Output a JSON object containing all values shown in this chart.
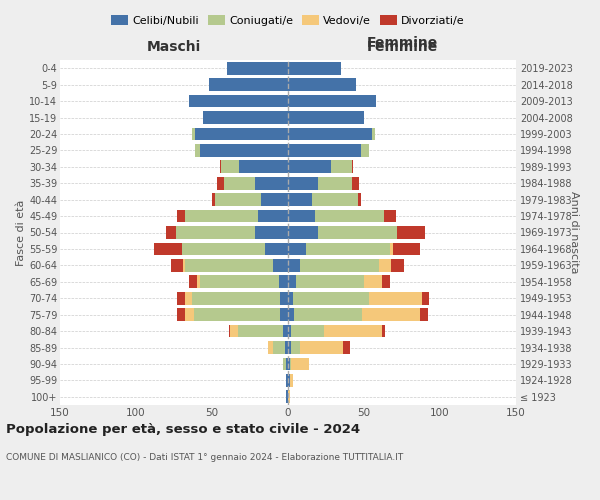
{
  "age_groups": [
    "100+",
    "95-99",
    "90-94",
    "85-89",
    "80-84",
    "75-79",
    "70-74",
    "65-69",
    "60-64",
    "55-59",
    "50-54",
    "45-49",
    "40-44",
    "35-39",
    "30-34",
    "25-29",
    "20-24",
    "15-19",
    "10-14",
    "5-9",
    "0-4"
  ],
  "birth_years": [
    "≤ 1923",
    "1924-1928",
    "1929-1933",
    "1934-1938",
    "1939-1943",
    "1944-1948",
    "1949-1953",
    "1954-1958",
    "1959-1963",
    "1964-1968",
    "1969-1973",
    "1974-1978",
    "1979-1983",
    "1984-1988",
    "1989-1993",
    "1994-1998",
    "1999-2003",
    "2004-2008",
    "2009-2013",
    "2014-2018",
    "2019-2023"
  ],
  "maschi": {
    "celibi": [
      1,
      1,
      1,
      2,
      3,
      5,
      5,
      6,
      10,
      15,
      22,
      20,
      18,
      22,
      32,
      58,
      61,
      56,
      65,
      52,
      40
    ],
    "coniugati": [
      0,
      0,
      2,
      8,
      30,
      57,
      58,
      52,
      58,
      55,
      52,
      48,
      30,
      20,
      12,
      3,
      2,
      0,
      0,
      0,
      0
    ],
    "vedovi": [
      0,
      0,
      0,
      3,
      5,
      6,
      5,
      2,
      1,
      0,
      0,
      0,
      0,
      0,
      0,
      0,
      0,
      0,
      0,
      0,
      0
    ],
    "divorziati": [
      0,
      0,
      0,
      0,
      1,
      5,
      5,
      5,
      8,
      18,
      6,
      5,
      2,
      5,
      1,
      0,
      0,
      0,
      0,
      0,
      0
    ]
  },
  "femmine": {
    "nubili": [
      0,
      1,
      1,
      2,
      2,
      4,
      3,
      5,
      8,
      12,
      20,
      18,
      16,
      20,
      28,
      48,
      55,
      50,
      58,
      45,
      35
    ],
    "coniugate": [
      0,
      0,
      1,
      6,
      22,
      45,
      50,
      45,
      52,
      55,
      52,
      45,
      30,
      22,
      14,
      5,
      2,
      0,
      0,
      0,
      0
    ],
    "vedove": [
      1,
      2,
      12,
      28,
      38,
      38,
      35,
      12,
      8,
      2,
      0,
      0,
      0,
      0,
      0,
      0,
      0,
      0,
      0,
      0,
      0
    ],
    "divorziate": [
      0,
      0,
      0,
      5,
      2,
      5,
      5,
      5,
      8,
      18,
      18,
      8,
      2,
      5,
      1,
      0,
      0,
      0,
      0,
      0,
      0
    ]
  },
  "colors": {
    "celibi": "#4472A8",
    "coniugati": "#B5C98E",
    "vedovi": "#F5C87A",
    "divorziati": "#C0392B"
  },
  "xlim": 150,
  "title": "Popolazione per età, sesso e stato civile - 2024",
  "subtitle": "COMUNE DI MASLIANICO (CO) - Dati ISTAT 1° gennaio 2024 - Elaborazione TUTTITALIA.IT",
  "ylabel_left": "Fasce di età",
  "ylabel_right": "Anni di nascita",
  "xlabel_left": "Maschi",
  "xlabel_right": "Femmine",
  "bg_color": "#eeeeee",
  "plot_bg": "#ffffff"
}
